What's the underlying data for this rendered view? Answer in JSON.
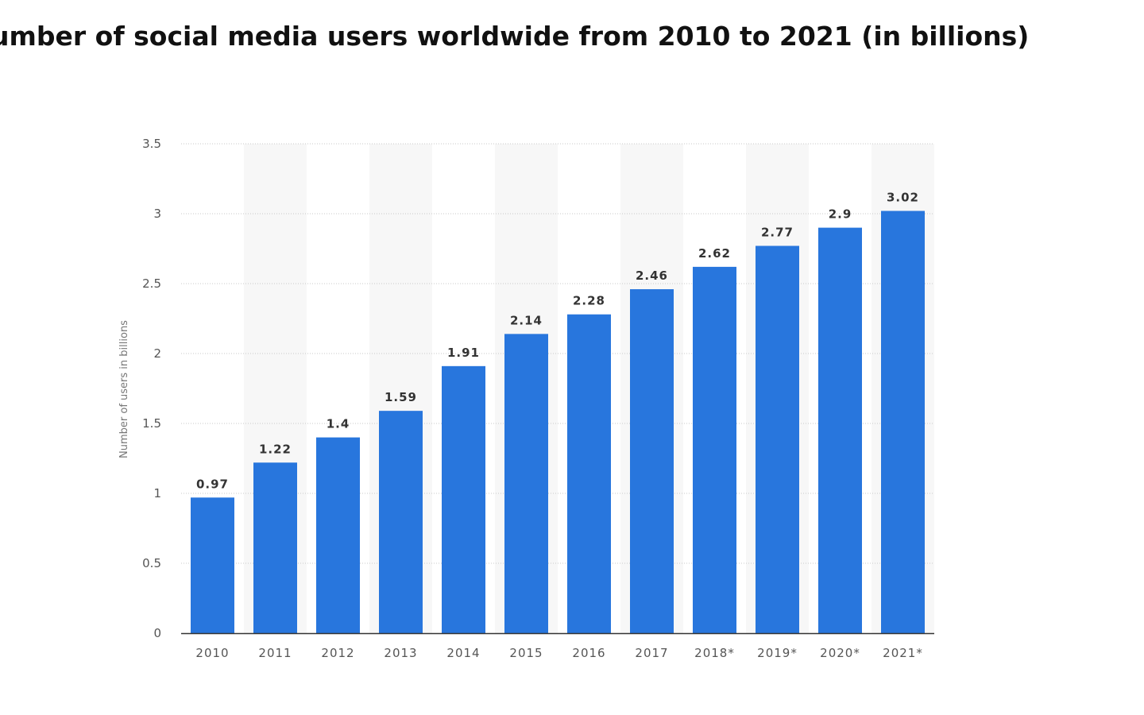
{
  "chart_data": {
    "type": "bar",
    "title": "umber of social media users worldwide from 2010 to 2021 (in billions)",
    "ylabel": "Number of users in billions",
    "xlabel": "",
    "categories": [
      "2010",
      "2011",
      "2012",
      "2013",
      "2014",
      "2015",
      "2016",
      "2017",
      "2018*",
      "2019*",
      "2020*",
      "2021*"
    ],
    "values": [
      0.97,
      1.22,
      1.4,
      1.59,
      1.91,
      2.14,
      2.28,
      2.46,
      2.62,
      2.77,
      2.9,
      3.02
    ],
    "value_labels": [
      "0.97",
      "1.22",
      "1.4",
      "1.59",
      "1.91",
      "2.14",
      "2.28",
      "2.46",
      "2.62",
      "2.77",
      "2.9",
      "3.02"
    ],
    "ylim": [
      0,
      3.5
    ],
    "yticks": [
      0,
      0.5,
      1,
      1.5,
      2,
      2.5,
      3,
      3.5
    ],
    "ytick_labels": [
      "0",
      "0.5",
      "1",
      "1.5",
      "2",
      "2.5",
      "3",
      "3.5"
    ],
    "grid": true,
    "legend": "none",
    "colors": {
      "bar": "#2876dd",
      "band": "#f7f7f7",
      "grid": "#c8c8c8",
      "axis": "#333333"
    }
  }
}
